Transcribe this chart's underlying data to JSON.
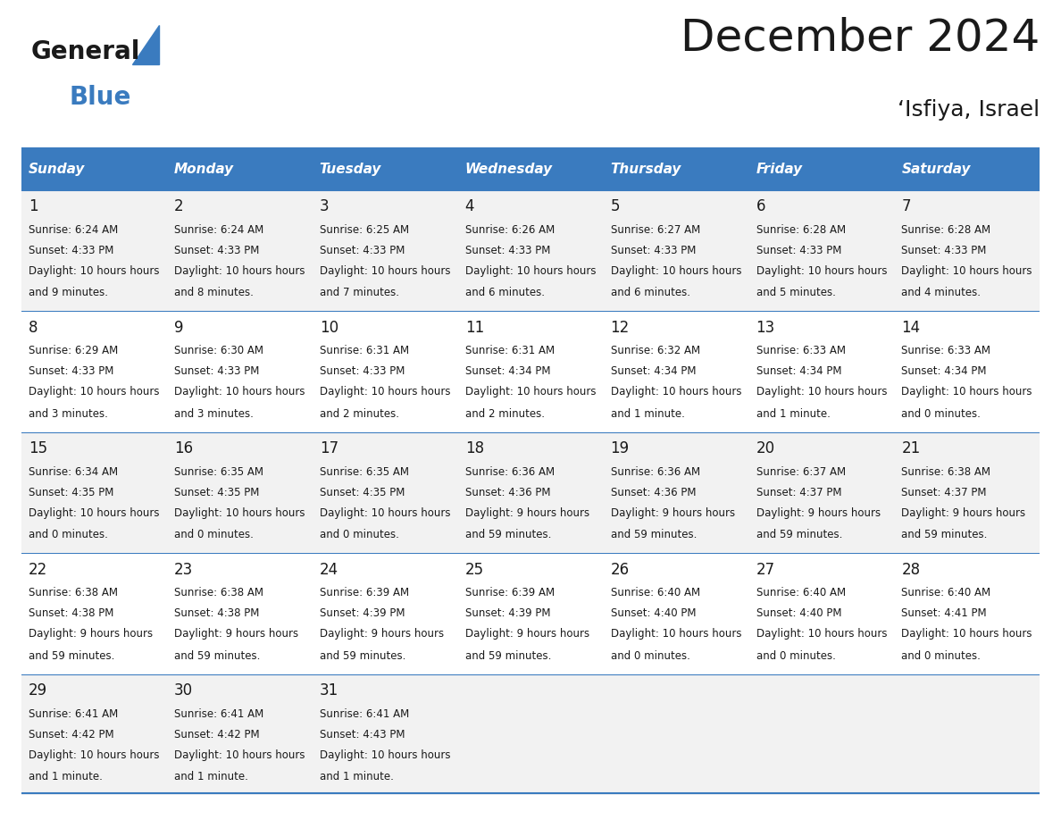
{
  "title": "December 2024",
  "subtitle": "‘Isfiya, Israel",
  "header_bg": "#3a7bbf",
  "header_text": "#ffffff",
  "row_bg_alt": "#f2f2f2",
  "row_bg_main": "#ffffff",
  "border_color": "#3a7bbf",
  "day_names": [
    "Sunday",
    "Monday",
    "Tuesday",
    "Wednesday",
    "Thursday",
    "Friday",
    "Saturday"
  ],
  "days": [
    {
      "day": 1,
      "col": 0,
      "row": 0,
      "sunrise": "6:24 AM",
      "sunset": "4:33 PM",
      "daylight": "10 hours and 9 minutes."
    },
    {
      "day": 2,
      "col": 1,
      "row": 0,
      "sunrise": "6:24 AM",
      "sunset": "4:33 PM",
      "daylight": "10 hours and 8 minutes."
    },
    {
      "day": 3,
      "col": 2,
      "row": 0,
      "sunrise": "6:25 AM",
      "sunset": "4:33 PM",
      "daylight": "10 hours and 7 minutes."
    },
    {
      "day": 4,
      "col": 3,
      "row": 0,
      "sunrise": "6:26 AM",
      "sunset": "4:33 PM",
      "daylight": "10 hours and 6 minutes."
    },
    {
      "day": 5,
      "col": 4,
      "row": 0,
      "sunrise": "6:27 AM",
      "sunset": "4:33 PM",
      "daylight": "10 hours and 6 minutes."
    },
    {
      "day": 6,
      "col": 5,
      "row": 0,
      "sunrise": "6:28 AM",
      "sunset": "4:33 PM",
      "daylight": "10 hours and 5 minutes."
    },
    {
      "day": 7,
      "col": 6,
      "row": 0,
      "sunrise": "6:28 AM",
      "sunset": "4:33 PM",
      "daylight": "10 hours and 4 minutes."
    },
    {
      "day": 8,
      "col": 0,
      "row": 1,
      "sunrise": "6:29 AM",
      "sunset": "4:33 PM",
      "daylight": "10 hours and 3 minutes."
    },
    {
      "day": 9,
      "col": 1,
      "row": 1,
      "sunrise": "6:30 AM",
      "sunset": "4:33 PM",
      "daylight": "10 hours and 3 minutes."
    },
    {
      "day": 10,
      "col": 2,
      "row": 1,
      "sunrise": "6:31 AM",
      "sunset": "4:33 PM",
      "daylight": "10 hours and 2 minutes."
    },
    {
      "day": 11,
      "col": 3,
      "row": 1,
      "sunrise": "6:31 AM",
      "sunset": "4:34 PM",
      "daylight": "10 hours and 2 minutes."
    },
    {
      "day": 12,
      "col": 4,
      "row": 1,
      "sunrise": "6:32 AM",
      "sunset": "4:34 PM",
      "daylight": "10 hours and 1 minute."
    },
    {
      "day": 13,
      "col": 5,
      "row": 1,
      "sunrise": "6:33 AM",
      "sunset": "4:34 PM",
      "daylight": "10 hours and 1 minute."
    },
    {
      "day": 14,
      "col": 6,
      "row": 1,
      "sunrise": "6:33 AM",
      "sunset": "4:34 PM",
      "daylight": "10 hours and 0 minutes."
    },
    {
      "day": 15,
      "col": 0,
      "row": 2,
      "sunrise": "6:34 AM",
      "sunset": "4:35 PM",
      "daylight": "10 hours and 0 minutes."
    },
    {
      "day": 16,
      "col": 1,
      "row": 2,
      "sunrise": "6:35 AM",
      "sunset": "4:35 PM",
      "daylight": "10 hours and 0 minutes."
    },
    {
      "day": 17,
      "col": 2,
      "row": 2,
      "sunrise": "6:35 AM",
      "sunset": "4:35 PM",
      "daylight": "10 hours and 0 minutes."
    },
    {
      "day": 18,
      "col": 3,
      "row": 2,
      "sunrise": "6:36 AM",
      "sunset": "4:36 PM",
      "daylight": "9 hours and 59 minutes."
    },
    {
      "day": 19,
      "col": 4,
      "row": 2,
      "sunrise": "6:36 AM",
      "sunset": "4:36 PM",
      "daylight": "9 hours and 59 minutes."
    },
    {
      "day": 20,
      "col": 5,
      "row": 2,
      "sunrise": "6:37 AM",
      "sunset": "4:37 PM",
      "daylight": "9 hours and 59 minutes."
    },
    {
      "day": 21,
      "col": 6,
      "row": 2,
      "sunrise": "6:38 AM",
      "sunset": "4:37 PM",
      "daylight": "9 hours and 59 minutes."
    },
    {
      "day": 22,
      "col": 0,
      "row": 3,
      "sunrise": "6:38 AM",
      "sunset": "4:38 PM",
      "daylight": "9 hours and 59 minutes."
    },
    {
      "day": 23,
      "col": 1,
      "row": 3,
      "sunrise": "6:38 AM",
      "sunset": "4:38 PM",
      "daylight": "9 hours and 59 minutes."
    },
    {
      "day": 24,
      "col": 2,
      "row": 3,
      "sunrise": "6:39 AM",
      "sunset": "4:39 PM",
      "daylight": "9 hours and 59 minutes."
    },
    {
      "day": 25,
      "col": 3,
      "row": 3,
      "sunrise": "6:39 AM",
      "sunset": "4:39 PM",
      "daylight": "9 hours and 59 minutes."
    },
    {
      "day": 26,
      "col": 4,
      "row": 3,
      "sunrise": "6:40 AM",
      "sunset": "4:40 PM",
      "daylight": "10 hours and 0 minutes."
    },
    {
      "day": 27,
      "col": 5,
      "row": 3,
      "sunrise": "6:40 AM",
      "sunset": "4:40 PM",
      "daylight": "10 hours and 0 minutes."
    },
    {
      "day": 28,
      "col": 6,
      "row": 3,
      "sunrise": "6:40 AM",
      "sunset": "4:41 PM",
      "daylight": "10 hours and 0 minutes."
    },
    {
      "day": 29,
      "col": 0,
      "row": 4,
      "sunrise": "6:41 AM",
      "sunset": "4:42 PM",
      "daylight": "10 hours and 1 minute."
    },
    {
      "day": 30,
      "col": 1,
      "row": 4,
      "sunrise": "6:41 AM",
      "sunset": "4:42 PM",
      "daylight": "10 hours and 1 minute."
    },
    {
      "day": 31,
      "col": 2,
      "row": 4,
      "sunrise": "6:41 AM",
      "sunset": "4:43 PM",
      "daylight": "10 hours and 1 minute."
    }
  ],
  "num_rows": 5,
  "logo_text1": "General",
  "logo_text2": "Blue",
  "logo_color1": "#1a1a1a",
  "logo_color2": "#3a7bbf",
  "logo_triangle_color": "#3a7bbf"
}
